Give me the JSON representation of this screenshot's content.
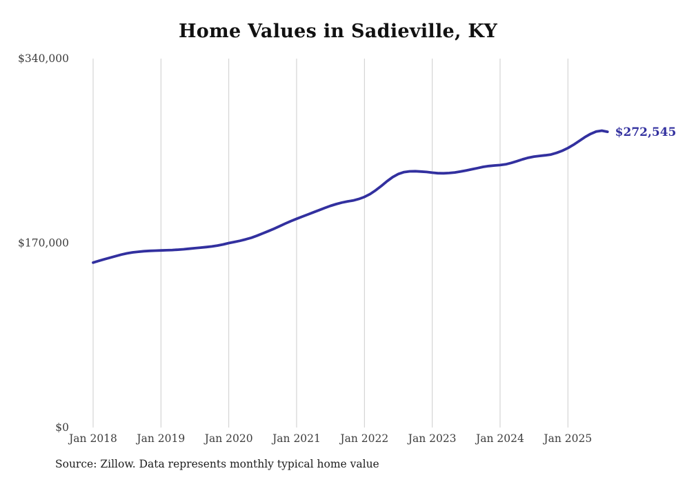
{
  "chart_data": {
    "type": "line",
    "title": "Home Values in Sadieville, KY",
    "source": "Source: Zillow. Data represents monthly typical home value",
    "grid": "vertical-only",
    "gridline_color": "#cccccc",
    "tick_label_color": "#3d3d3d",
    "ylim": [
      0,
      340000
    ],
    "y_ticks": [
      {
        "label": "$0",
        "value": 0
      },
      {
        "label": "$170,000",
        "value": 170000
      },
      {
        "label": "$340,000",
        "value": 340000
      }
    ],
    "x_tick_labels": [
      "Jan 2018",
      "Jan 2019",
      "Jan 2020",
      "Jan 2021",
      "Jan 2022",
      "Jan 2023",
      "Jan 2024",
      "Jan 2025"
    ],
    "start_month": "Jan 2018",
    "frequency": "monthly",
    "end_label": "$272,545",
    "series": [
      {
        "name": "Typical home value",
        "color": "#32309f",
        "values": [
          152000,
          153600,
          155100,
          156500,
          158000,
          159400,
          160500,
          161400,
          162000,
          162500,
          162800,
          163000,
          163200,
          163400,
          163600,
          163900,
          164300,
          164800,
          165300,
          165800,
          166300,
          166900,
          167700,
          168700,
          170000,
          171000,
          172100,
          173400,
          174900,
          176800,
          178900,
          181000,
          183200,
          185600,
          188000,
          190300,
          192400,
          194400,
          196400,
          198400,
          200400,
          202400,
          204300,
          205900,
          207300,
          208400,
          209200,
          210600,
          212500,
          215200,
          218700,
          222700,
          227000,
          230800,
          233700,
          235400,
          236100,
          236200,
          235900,
          235500,
          234900,
          234400,
          234300,
          234600,
          235100,
          235900,
          236900,
          238000,
          239100,
          240200,
          241000,
          241500,
          241900,
          242600,
          243900,
          245500,
          247200,
          248700,
          249700,
          250300,
          250900,
          251600,
          253100,
          255100,
          257600,
          260600,
          264100,
          267600,
          270600,
          272800,
          273600,
          272545
        ]
      }
    ]
  }
}
